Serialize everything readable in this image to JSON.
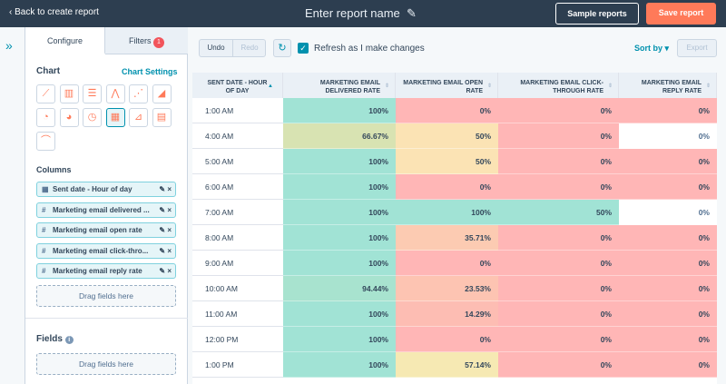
{
  "header": {
    "back": "Back to create report",
    "report_name": "Enter report name",
    "sample_button": "Sample reports",
    "save_button": "Save report"
  },
  "sidebar": {
    "tabs": [
      "Configure",
      "Filters"
    ],
    "filters_count": "1",
    "chart_heading": "Chart",
    "chart_settings": "Chart Settings",
    "columns_heading": "Columns",
    "columns": [
      {
        "icon": "date",
        "label": "Sent date - Hour of day"
      },
      {
        "icon": "number",
        "label": "Marketing email delivered ..."
      },
      {
        "icon": "number",
        "label": "Marketing email open rate"
      },
      {
        "icon": "number",
        "label": "Marketing email click-thro..."
      },
      {
        "icon": "number",
        "label": "Marketing email reply rate"
      }
    ],
    "drop_zone": "Drag fields here",
    "fields_heading": "Fields",
    "fields_drop_zone": "Drag fields here"
  },
  "toolbar": {
    "undo": "Undo",
    "redo": "Redo",
    "refresh_label": "Refresh as I make changes",
    "sort_by": "Sort by",
    "export": "Export"
  },
  "table": {
    "columns": [
      "SENT DATE - HOUR OF DAY",
      "MARKETING EMAIL DELIVERED RATE",
      "MARKETING EMAIL OPEN RATE",
      "MARKETING EMAIL CLICK-THROUGH RATE",
      "MARKETING EMAIL REPLY RATE"
    ],
    "rows": [
      {
        "hour": "1:00 AM",
        "cells": [
          {
            "text": "100%",
            "color": "#a1e3d5"
          },
          {
            "text": "0%",
            "color": "#ffb6b6"
          },
          {
            "text": "0%",
            "color": "#ffb6b6"
          },
          {
            "text": "0%",
            "color": "#ffb6b6"
          }
        ]
      },
      {
        "hour": "4:00 AM",
        "cells": [
          {
            "text": "66.67%",
            "color": "#d8e3b2"
          },
          {
            "text": "50%",
            "color": "#fbe3b4"
          },
          {
            "text": "0%",
            "color": "#ffb6b6"
          },
          {
            "text": "0%",
            "color": "#ffffff"
          }
        ]
      },
      {
        "hour": "5:00 AM",
        "cells": [
          {
            "text": "100%",
            "color": "#a1e3d5"
          },
          {
            "text": "50%",
            "color": "#fbe3b4"
          },
          {
            "text": "0%",
            "color": "#ffb6b6"
          },
          {
            "text": "0%",
            "color": "#ffb6b6"
          }
        ]
      },
      {
        "hour": "6:00 AM",
        "cells": [
          {
            "text": "100%",
            "color": "#a1e3d5"
          },
          {
            "text": "0%",
            "color": "#ffb6b6"
          },
          {
            "text": "0%",
            "color": "#ffb6b6"
          },
          {
            "text": "0%",
            "color": "#ffb6b6"
          }
        ]
      },
      {
        "hour": "7:00 AM",
        "cells": [
          {
            "text": "100%",
            "color": "#a1e3d5"
          },
          {
            "text": "100%",
            "color": "#a1e3d5"
          },
          {
            "text": "50%",
            "color": "#a1e3d5"
          },
          {
            "text": "0%",
            "color": "#ffffff"
          }
        ]
      },
      {
        "hour": "8:00 AM",
        "cells": [
          {
            "text": "100%",
            "color": "#a1e3d5"
          },
          {
            "text": "35.71%",
            "color": "#fccbb2"
          },
          {
            "text": "0%",
            "color": "#ffb6b6"
          },
          {
            "text": "0%",
            "color": "#ffb6b6"
          }
        ]
      },
      {
        "hour": "9:00 AM",
        "cells": [
          {
            "text": "100%",
            "color": "#a1e3d5"
          },
          {
            "text": "0%",
            "color": "#ffb6b6"
          },
          {
            "text": "0%",
            "color": "#ffb6b6"
          },
          {
            "text": "0%",
            "color": "#ffb6b6"
          }
        ]
      },
      {
        "hour": "10:00 AM",
        "cells": [
          {
            "text": "94.44%",
            "color": "#a8e3cf"
          },
          {
            "text": "23.53%",
            "color": "#fdc4b2"
          },
          {
            "text": "0%",
            "color": "#ffb6b6"
          },
          {
            "text": "0%",
            "color": "#ffb6b6"
          }
        ]
      },
      {
        "hour": "11:00 AM",
        "cells": [
          {
            "text": "100%",
            "color": "#a1e3d5"
          },
          {
            "text": "14.29%",
            "color": "#fdbdb3"
          },
          {
            "text": "0%",
            "color": "#ffb6b6"
          },
          {
            "text": "0%",
            "color": "#ffb6b6"
          }
        ]
      },
      {
        "hour": "12:00 PM",
        "cells": [
          {
            "text": "100%",
            "color": "#a1e3d5"
          },
          {
            "text": "0%",
            "color": "#ffb6b6"
          },
          {
            "text": "0%",
            "color": "#ffb6b6"
          },
          {
            "text": "0%",
            "color": "#ffb6b6"
          }
        ]
      },
      {
        "hour": "1:00 PM",
        "cells": [
          {
            "text": "100%",
            "color": "#a1e3d5"
          },
          {
            "text": "57.14%",
            "color": "#f6e9b3"
          },
          {
            "text": "0%",
            "color": "#ffb6b6"
          },
          {
            "text": "0%",
            "color": "#ffb6b6"
          }
        ]
      }
    ]
  }
}
